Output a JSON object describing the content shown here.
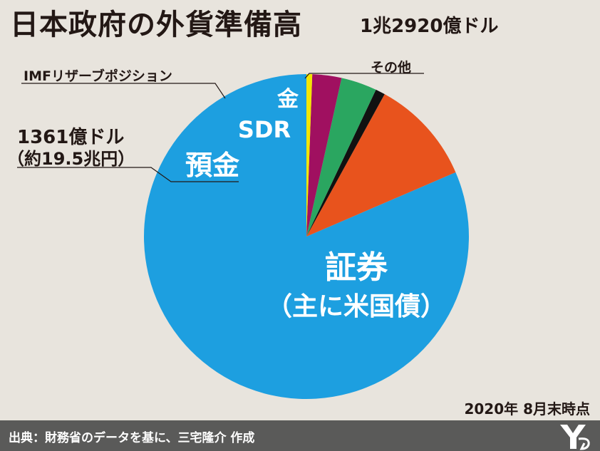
{
  "title": "日本政府の外貨準備高",
  "subtitle": "1兆2920億ドル",
  "as_of": "2020年 8月末時点",
  "source": "出典：財務省のデータを基に、三宅隆介 作成",
  "callouts": {
    "imf": "IMFリザーブポジション",
    "other": "その他",
    "deposits_amount": "1361億ドル",
    "deposits_yen": "（約19.5兆円）"
  },
  "chart_data": {
    "type": "pie",
    "total": 12920,
    "unit": "億ドル",
    "slices": [
      {
        "label": "証券",
        "sublabel": "（主に米国債）",
        "value": 10526,
        "color": "#1d9fe0"
      },
      {
        "label": "預金",
        "value": 1361,
        "color": "#e8531d"
      },
      {
        "label": "IMFリザーブポジション",
        "value": 124,
        "color": "#111111"
      },
      {
        "label": "SDR",
        "value": 460,
        "color": "#2aa660"
      },
      {
        "label": "金",
        "value": 375,
        "color": "#a01060"
      },
      {
        "label": "その他",
        "value": 74,
        "color": "#f2e600"
      }
    ]
  }
}
